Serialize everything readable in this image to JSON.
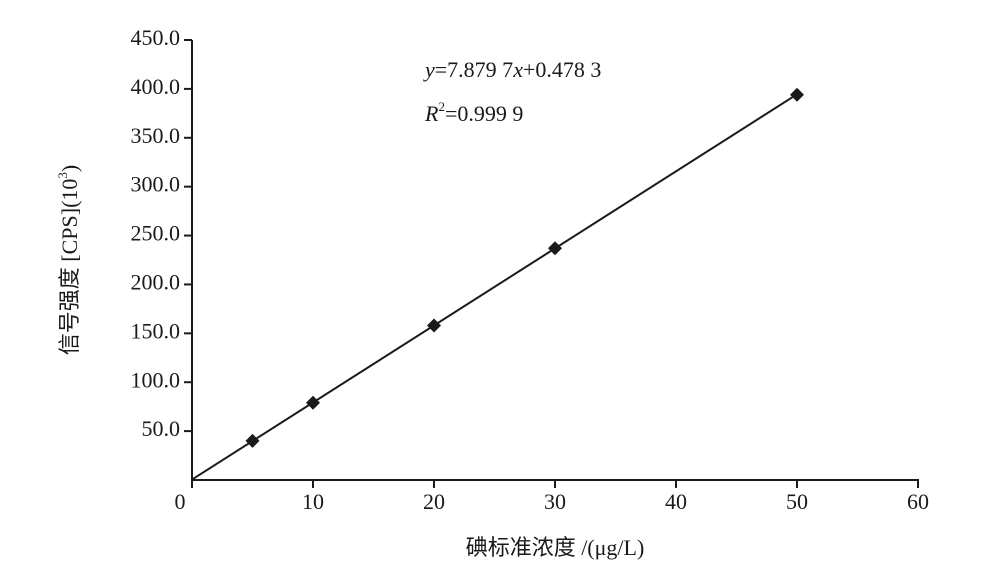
{
  "chart_data": {
    "type": "scatter",
    "x_label": "碘标准浓度 /(μg/L)",
    "y_label": [
      "信号强度 [CPS](10",
      "3",
      ")"
    ],
    "equation": [
      "y",
      "=7.879 7",
      "x",
      "+0.478 3"
    ],
    "r_squared": [
      "R",
      "2",
      "=0.999 9"
    ],
    "trendline": {
      "slope": 7.8797,
      "intercept": 0.4783
    },
    "x": [
      5,
      10,
      20,
      30,
      50
    ],
    "values": [
      40,
      79,
      158,
      237,
      394
    ],
    "color": "#1a1a1a",
    "xlim": [
      0,
      60
    ],
    "xticks": [
      0,
      10,
      20,
      30,
      40,
      50,
      60
    ],
    "ylim": [
      0,
      450
    ],
    "yticks": [
      {
        "value": 50,
        "label": "50.0"
      },
      {
        "value": 100,
        "label": "100.0"
      },
      {
        "value": 150,
        "label": "150.0"
      },
      {
        "value": 200,
        "label": "200.0"
      },
      {
        "value": 250,
        "label": "250.0"
      },
      {
        "value": 300,
        "label": "300.0"
      },
      {
        "value": 350,
        "label": "350.0"
      },
      {
        "value": 400,
        "label": "400.0"
      },
      {
        "value": 450,
        "label": "450.0"
      }
    ]
  }
}
